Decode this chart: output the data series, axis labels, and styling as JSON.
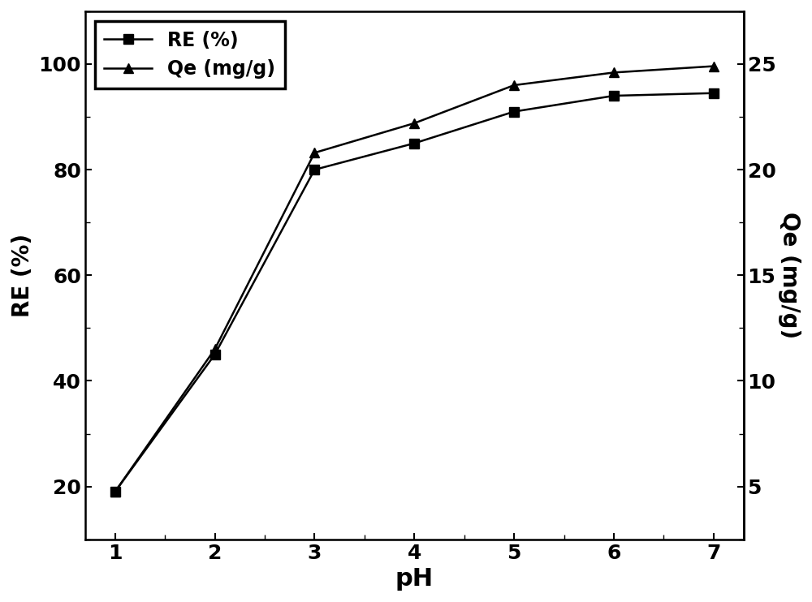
{
  "ph": [
    1,
    2,
    3,
    4,
    5,
    6,
    7
  ],
  "RE": [
    19,
    45,
    80,
    85,
    91,
    94,
    94.5
  ],
  "Qe": [
    4.75,
    11.5,
    20.8,
    22.2,
    24.0,
    24.6,
    24.9
  ],
  "RE_label": "RE (%)",
  "Qe_label": "Qe (mg/g)",
  "xlabel": "pH",
  "ylabel_left": "RE (%)",
  "ylabel_right": "Qe (mg/g)",
  "left_ylim": [
    10,
    110
  ],
  "right_ylim": [
    2.5,
    27.5
  ],
  "left_yticks": [
    20,
    40,
    60,
    80,
    100
  ],
  "right_yticks": [
    5,
    10,
    15,
    20,
    25
  ],
  "xticks": [
    1,
    2,
    3,
    4,
    5,
    6,
    7
  ],
  "line_color": "#000000",
  "marker_RE": "s",
  "marker_Qe": "^",
  "markersize": 9,
  "linewidth": 1.8,
  "xlabel_fontsize": 22,
  "ylabel_fontsize": 20,
  "tick_fontsize": 18,
  "legend_fontsize": 17
}
